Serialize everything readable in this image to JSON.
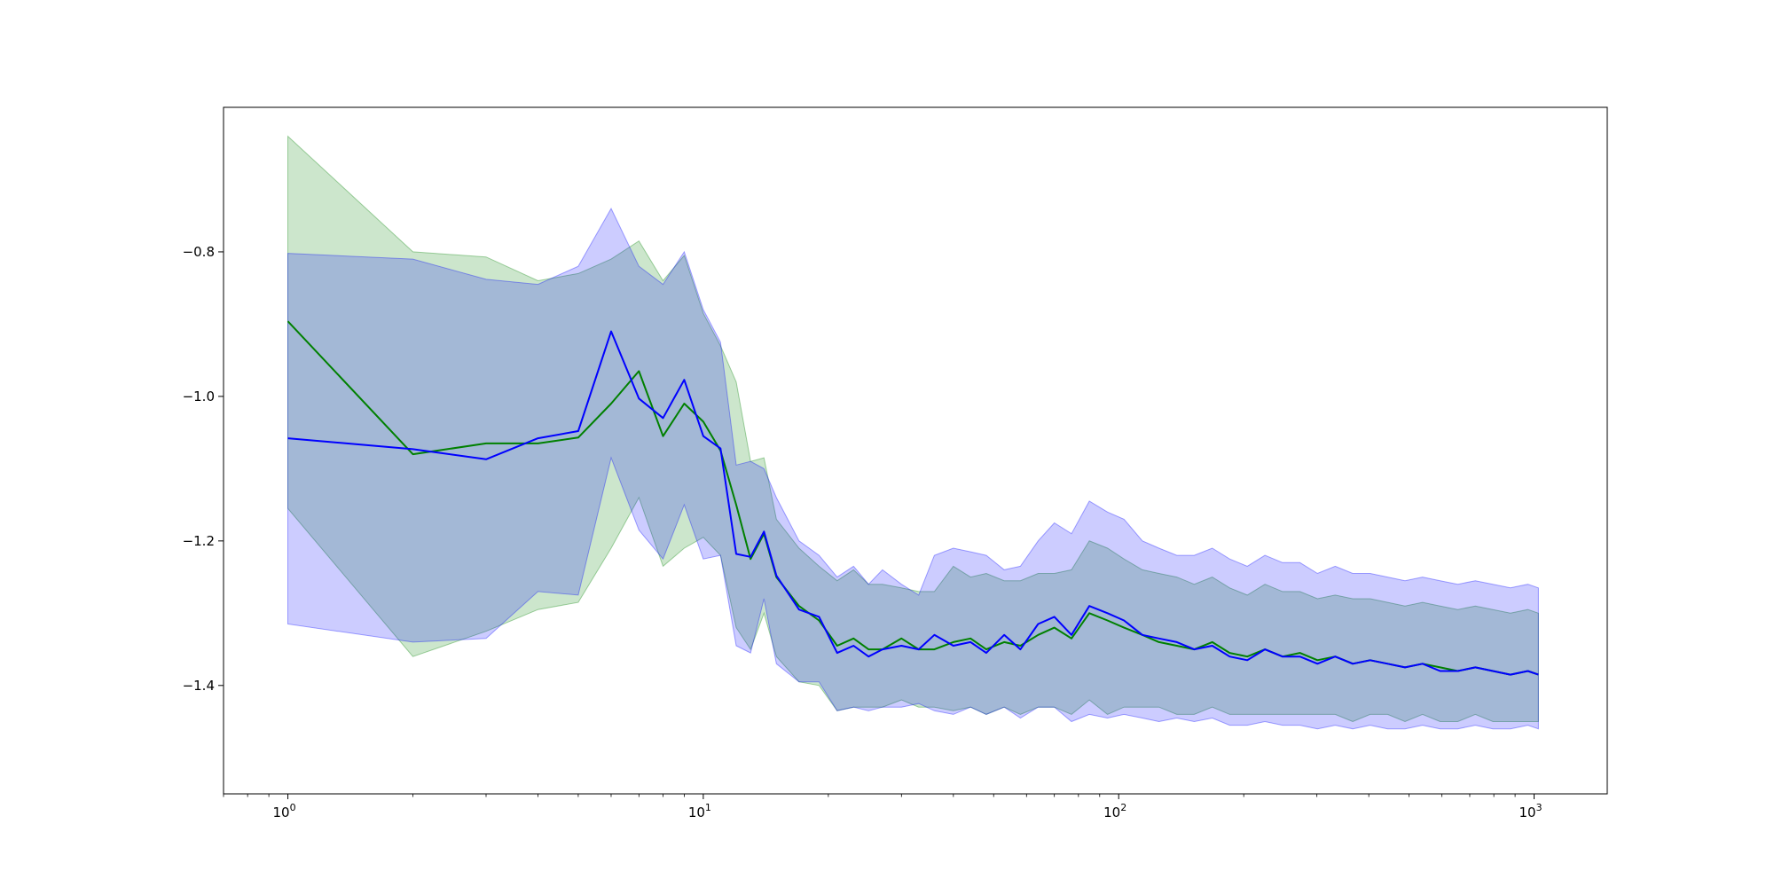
{
  "chart_data": {
    "type": "line",
    "xscale": "log",
    "xlim": [
      0.7,
      1500
    ],
    "ylim": [
      -1.55,
      -0.6
    ],
    "grid": false,
    "title": "",
    "xlabel": "",
    "ylabel": "",
    "x_tick_labels": [
      {
        "value": 1,
        "base": "10",
        "exp": "0"
      },
      {
        "value": 10,
        "base": "10",
        "exp": "1"
      },
      {
        "value": 100,
        "base": "10",
        "exp": "2"
      },
      {
        "value": 1000,
        "base": "10",
        "exp": "3"
      }
    ],
    "y_ticks": [
      -0.8,
      -1.0,
      -1.2,
      -1.4
    ],
    "y_tick_labels": [
      "−0.8",
      "−1.0",
      "−1.2",
      "−1.4"
    ],
    "series": [
      {
        "color": "#008000",
        "band_color": "#008000",
        "band_alpha": 0.2,
        "x": [
          1,
          2,
          3,
          4,
          5,
          6,
          7,
          8,
          9,
          10,
          11,
          12,
          13,
          14,
          15,
          17,
          19,
          21,
          23,
          25,
          27,
          30,
          33,
          36,
          40,
          44,
          48,
          53,
          58,
          64,
          70,
          77,
          85,
          94,
          103,
          114,
          125,
          138,
          152,
          168,
          185,
          204,
          225,
          248,
          273,
          301,
          332,
          366,
          403,
          444,
          489,
          539,
          594,
          655,
          722,
          796,
          877,
          966,
          1024
        ],
        "mean": [
          -0.896,
          -1.08,
          -1.065,
          -1.065,
          -1.057,
          -1.01,
          -0.965,
          -1.055,
          -1.01,
          -1.035,
          -1.075,
          -1.15,
          -1.225,
          -1.19,
          -1.25,
          -1.29,
          -1.31,
          -1.345,
          -1.335,
          -1.35,
          -1.35,
          -1.335,
          -1.35,
          -1.35,
          -1.34,
          -1.335,
          -1.35,
          -1.34,
          -1.345,
          -1.33,
          -1.32,
          -1.335,
          -1.3,
          -1.31,
          -1.32,
          -1.33,
          -1.34,
          -1.345,
          -1.35,
          -1.34,
          -1.355,
          -1.36,
          -1.35,
          -1.36,
          -1.355,
          -1.365,
          -1.36,
          -1.37,
          -1.365,
          -1.37,
          -1.375,
          -1.37,
          -1.375,
          -1.38,
          -1.375,
          -1.38,
          -1.385,
          -1.38,
          -1.385
        ],
        "upper": [
          -0.64,
          -0.8,
          -0.807,
          -0.84,
          -0.83,
          -0.81,
          -0.785,
          -0.84,
          -0.805,
          -0.885,
          -0.93,
          -0.98,
          -1.09,
          -1.085,
          -1.17,
          -1.21,
          -1.235,
          -1.255,
          -1.24,
          -1.26,
          -1.26,
          -1.265,
          -1.27,
          -1.27,
          -1.235,
          -1.25,
          -1.245,
          -1.255,
          -1.255,
          -1.245,
          -1.245,
          -1.24,
          -1.2,
          -1.21,
          -1.225,
          -1.24,
          -1.245,
          -1.25,
          -1.26,
          -1.25,
          -1.265,
          -1.275,
          -1.26,
          -1.27,
          -1.27,
          -1.28,
          -1.275,
          -1.28,
          -1.28,
          -1.285,
          -1.29,
          -1.285,
          -1.29,
          -1.295,
          -1.29,
          -1.295,
          -1.3,
          -1.295,
          -1.3
        ],
        "lower": [
          -1.155,
          -1.36,
          -1.325,
          -1.295,
          -1.285,
          -1.21,
          -1.14,
          -1.235,
          -1.21,
          -1.195,
          -1.22,
          -1.32,
          -1.35,
          -1.3,
          -1.36,
          -1.395,
          -1.4,
          -1.435,
          -1.43,
          -1.43,
          -1.43,
          -1.42,
          -1.43,
          -1.43,
          -1.435,
          -1.43,
          -1.44,
          -1.43,
          -1.44,
          -1.43,
          -1.43,
          -1.44,
          -1.42,
          -1.44,
          -1.43,
          -1.43,
          -1.43,
          -1.44,
          -1.44,
          -1.43,
          -1.44,
          -1.44,
          -1.44,
          -1.44,
          -1.44,
          -1.44,
          -1.44,
          -1.45,
          -1.44,
          -1.44,
          -1.45,
          -1.44,
          -1.45,
          -1.45,
          -1.44,
          -1.45,
          -1.45,
          -1.45,
          -1.45
        ]
      },
      {
        "color": "#0000ff",
        "band_color": "#0000ff",
        "band_alpha": 0.2,
        "x": [
          1,
          2,
          3,
          4,
          5,
          6,
          7,
          8,
          9,
          10,
          11,
          12,
          13,
          14,
          15,
          17,
          19,
          21,
          23,
          25,
          27,
          30,
          33,
          36,
          40,
          44,
          48,
          53,
          58,
          64,
          70,
          77,
          85,
          94,
          103,
          114,
          125,
          138,
          152,
          168,
          185,
          204,
          225,
          248,
          273,
          301,
          332,
          366,
          403,
          444,
          489,
          539,
          594,
          655,
          722,
          796,
          877,
          966,
          1024
        ],
        "mean": [
          -1.058,
          -1.073,
          -1.087,
          -1.058,
          -1.048,
          -0.91,
          -1.003,
          -1.03,
          -0.977,
          -1.055,
          -1.072,
          -1.218,
          -1.222,
          -1.187,
          -1.248,
          -1.295,
          -1.305,
          -1.355,
          -1.345,
          -1.36,
          -1.35,
          -1.345,
          -1.35,
          -1.33,
          -1.345,
          -1.34,
          -1.355,
          -1.33,
          -1.35,
          -1.315,
          -1.305,
          -1.33,
          -1.29,
          -1.3,
          -1.31,
          -1.33,
          -1.335,
          -1.34,
          -1.35,
          -1.345,
          -1.36,
          -1.365,
          -1.35,
          -1.36,
          -1.36,
          -1.37,
          -1.36,
          -1.37,
          -1.365,
          -1.37,
          -1.375,
          -1.37,
          -1.38,
          -1.38,
          -1.375,
          -1.38,
          -1.385,
          -1.38,
          -1.385
        ],
        "upper": [
          -0.802,
          -0.81,
          -0.838,
          -0.845,
          -0.82,
          -0.74,
          -0.82,
          -0.845,
          -0.8,
          -0.88,
          -0.925,
          -1.095,
          -1.09,
          -1.1,
          -1.14,
          -1.2,
          -1.22,
          -1.25,
          -1.235,
          -1.26,
          -1.24,
          -1.26,
          -1.275,
          -1.22,
          -1.21,
          -1.215,
          -1.22,
          -1.24,
          -1.235,
          -1.2,
          -1.175,
          -1.19,
          -1.145,
          -1.16,
          -1.17,
          -1.2,
          -1.21,
          -1.22,
          -1.22,
          -1.21,
          -1.225,
          -1.235,
          -1.22,
          -1.23,
          -1.23,
          -1.245,
          -1.235,
          -1.245,
          -1.245,
          -1.25,
          -1.255,
          -1.25,
          -1.255,
          -1.26,
          -1.255,
          -1.26,
          -1.265,
          -1.26,
          -1.265
        ],
        "lower": [
          -1.315,
          -1.34,
          -1.335,
          -1.27,
          -1.275,
          -1.085,
          -1.185,
          -1.225,
          -1.15,
          -1.225,
          -1.22,
          -1.345,
          -1.355,
          -1.28,
          -1.37,
          -1.395,
          -1.395,
          -1.435,
          -1.43,
          -1.435,
          -1.43,
          -1.43,
          -1.425,
          -1.435,
          -1.44,
          -1.43,
          -1.44,
          -1.43,
          -1.445,
          -1.43,
          -1.43,
          -1.45,
          -1.44,
          -1.445,
          -1.44,
          -1.445,
          -1.45,
          -1.445,
          -1.45,
          -1.445,
          -1.455,
          -1.455,
          -1.45,
          -1.455,
          -1.455,
          -1.46,
          -1.455,
          -1.46,
          -1.455,
          -1.46,
          -1.46,
          -1.455,
          -1.46,
          -1.46,
          -1.455,
          -1.46,
          -1.46,
          -1.455,
          -1.46
        ]
      }
    ]
  }
}
